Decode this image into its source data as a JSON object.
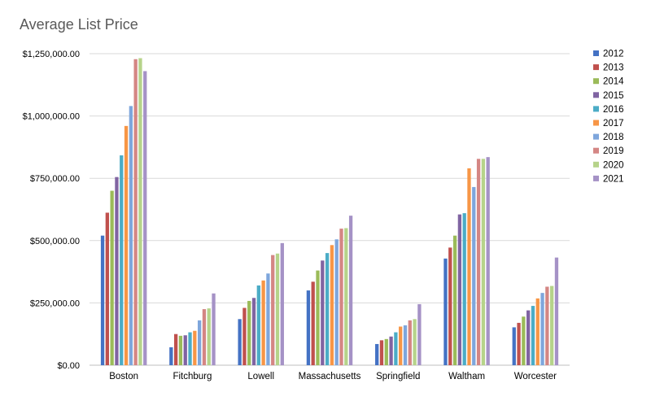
{
  "chart_data": {
    "type": "bar",
    "title": "Average List Price",
    "categories": [
      "Boston",
      "Fitchburg",
      "Lowell",
      "Massachusetts",
      "Springfield",
      "Waltham",
      "Worcester"
    ],
    "ylim": [
      0,
      1250000
    ],
    "yticks": [
      0,
      250000,
      500000,
      750000,
      1000000,
      1250000
    ],
    "ytick_labels": [
      "$0.00",
      "$250,000.00",
      "$500,000.00",
      "$750,000.00",
      "$1,000,000.00",
      "$1,250,000.00"
    ],
    "grid": true,
    "legend_position": "right",
    "series": [
      {
        "name": "2012",
        "color": "#4472C4",
        "values": [
          520000,
          72000,
          185000,
          300000,
          85000,
          428000,
          152000
        ]
      },
      {
        "name": "2013",
        "color": "#C0504D",
        "values": [
          612000,
          125000,
          230000,
          335000,
          100000,
          472000,
          170000
        ]
      },
      {
        "name": "2014",
        "color": "#9BBB59",
        "values": [
          700000,
          118000,
          258000,
          380000,
          105000,
          520000,
          195000
        ]
      },
      {
        "name": "2015",
        "color": "#8064A2",
        "values": [
          755000,
          120000,
          270000,
          420000,
          115000,
          605000,
          220000
        ]
      },
      {
        "name": "2016",
        "color": "#4BACC6",
        "values": [
          842000,
          132000,
          320000,
          450000,
          132000,
          610000,
          238000
        ]
      },
      {
        "name": "2017",
        "color": "#F79646",
        "values": [
          960000,
          138000,
          340000,
          482000,
          155000,
          790000,
          268000
        ]
      },
      {
        "name": "2018",
        "color": "#7EA6DC",
        "values": [
          1040000,
          180000,
          368000,
          505000,
          160000,
          715000,
          290000
        ]
      },
      {
        "name": "2019",
        "color": "#D48684",
        "values": [
          1228000,
          225000,
          442000,
          548000,
          180000,
          828000,
          315000
        ]
      },
      {
        "name": "2020",
        "color": "#B6D38A",
        "values": [
          1232000,
          228000,
          448000,
          550000,
          185000,
          828000,
          318000
        ]
      },
      {
        "name": "2021",
        "color": "#A592C6",
        "values": [
          1180000,
          288000,
          490000,
          600000,
          245000,
          835000,
          432000
        ]
      }
    ]
  }
}
